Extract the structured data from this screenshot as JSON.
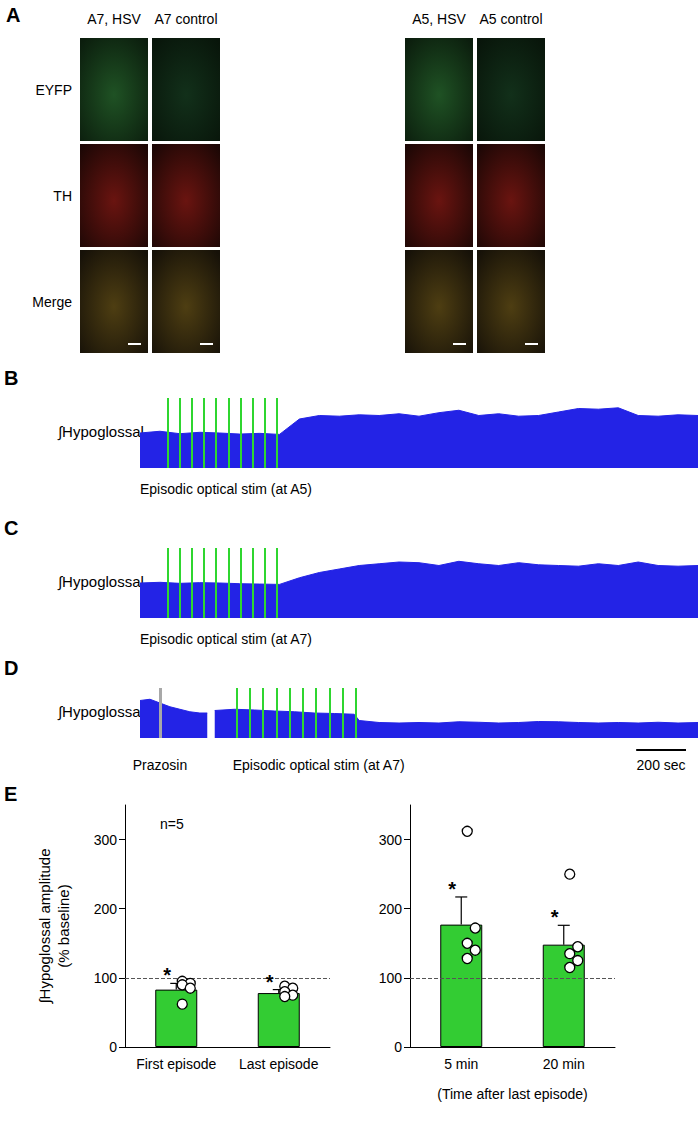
{
  "images": {
    "panel": "A",
    "columns": [
      "A7, HSV",
      "A7 control",
      "A5, HSV",
      "A5 control"
    ],
    "rows": [
      "EYFP",
      "TH",
      "Merge"
    ]
  },
  "chart_data": [
    {
      "panel": "B",
      "type": "area",
      "y_label": "∫Hypoglossal",
      "annotation": "Episodic optical stim (at A5)",
      "color": "#2323e6",
      "xlim": [
        0,
        2240
      ],
      "ylim": [
        0,
        200
      ],
      "tick_labels": false,
      "x": [
        0,
        80,
        160,
        240,
        320,
        400,
        480,
        560,
        640,
        720,
        800,
        880,
        960,
        1040,
        1120,
        1200,
        1280,
        1360,
        1440,
        1520,
        1600,
        1680,
        1760,
        1840,
        1920,
        2000,
        2080,
        2160,
        2240
      ],
      "values": [
        100,
        105,
        98,
        102,
        100,
        97,
        99,
        96,
        140,
        150,
        148,
        152,
        150,
        155,
        148,
        158,
        165,
        150,
        155,
        148,
        150,
        160,
        170,
        168,
        172,
        150,
        148,
        152,
        150
      ],
      "stim_times": [
        112,
        160,
        208,
        256,
        304,
        356,
        404,
        452,
        500,
        548
      ]
    },
    {
      "panel": "C",
      "type": "area",
      "y_label": "∫Hypoglossal",
      "annotation": "Episodic optical stim (at A7)",
      "color": "#2323e6",
      "xlim": [
        0,
        2240
      ],
      "ylim": [
        0,
        200
      ],
      "tick_labels": false,
      "x": [
        0,
        80,
        160,
        240,
        320,
        400,
        480,
        560,
        640,
        720,
        800,
        880,
        960,
        1040,
        1120,
        1200,
        1280,
        1360,
        1440,
        1520,
        1600,
        1680,
        1760,
        1840,
        1920,
        2000,
        2080,
        2160,
        2240
      ],
      "values": [
        100,
        102,
        99,
        101,
        100,
        98,
        97,
        96,
        115,
        130,
        140,
        150,
        155,
        160,
        158,
        150,
        162,
        155,
        150,
        158,
        152,
        150,
        148,
        155,
        150,
        160,
        150,
        148,
        150
      ],
      "stim_times": [
        112,
        160,
        208,
        256,
        304,
        356,
        404,
        452,
        500,
        548
      ]
    },
    {
      "panel": "D",
      "type": "area",
      "y_label": "∫Hypoglossal",
      "annotation": "Episodic optical stim (at A7)",
      "color": "#2323e6",
      "xlim": [
        0,
        2240
      ],
      "ylim": [
        0,
        200
      ],
      "tick_labels": false,
      "x": [
        0,
        40,
        80,
        120,
        160,
        200,
        240,
        270,
        285,
        300,
        380,
        460,
        540,
        620,
        700,
        780,
        860,
        880,
        960,
        1040,
        1120,
        1200,
        1280,
        1360,
        1440,
        1520,
        1600,
        1680,
        1760,
        1840,
        1920,
        2000,
        2080,
        2160,
        2240
      ],
      "values": [
        150,
        155,
        140,
        125,
        115,
        105,
        100,
        100,
        null,
        110,
        115,
        112,
        108,
        105,
        100,
        98,
        95,
        70,
        62,
        60,
        62,
        60,
        65,
        63,
        60,
        62,
        66,
        65,
        62,
        60,
        62,
        60,
        63,
        60,
        62
      ],
      "stim_times": [
        388,
        440,
        492,
        548,
        600,
        652,
        704,
        760,
        812,
        868
      ],
      "drug": {
        "time": 80,
        "label": "Prazosin"
      },
      "scale_bar": {
        "value": 200,
        "label": "200 sec"
      }
    },
    {
      "panel": "E",
      "type": "bar",
      "y_label": [
        "∫Hypoglossal amplitude",
        "(% baseline)"
      ],
      "annotation": "n=5",
      "categories": [
        "First episode",
        "Last episode"
      ],
      "values": [
        83,
        78
      ],
      "errors": [
        9,
        5
      ],
      "points": [
        [
          95,
          92,
          90,
          85,
          62
        ],
        [
          88,
          85,
          80,
          75,
          73
        ]
      ],
      "marks": [
        "*",
        "*"
      ],
      "reference": 100,
      "color": "#33cc33",
      "ylim": [
        0,
        350
      ],
      "yticks": [
        0,
        100,
        200,
        300
      ]
    },
    {
      "type": "bar",
      "x_label": "(Time after last episode)",
      "categories": [
        "5 min",
        "20 min"
      ],
      "values": [
        177,
        148
      ],
      "errors": [
        40,
        28
      ],
      "points": [
        [
          312,
          172,
          150,
          140,
          128
        ],
        [
          250,
          145,
          135,
          125,
          115
        ]
      ],
      "marks": [
        "*",
        "*"
      ],
      "reference": 100,
      "color": "#33cc33",
      "ylim": [
        0,
        350
      ],
      "yticks": [
        0,
        100,
        200,
        300
      ]
    }
  ]
}
